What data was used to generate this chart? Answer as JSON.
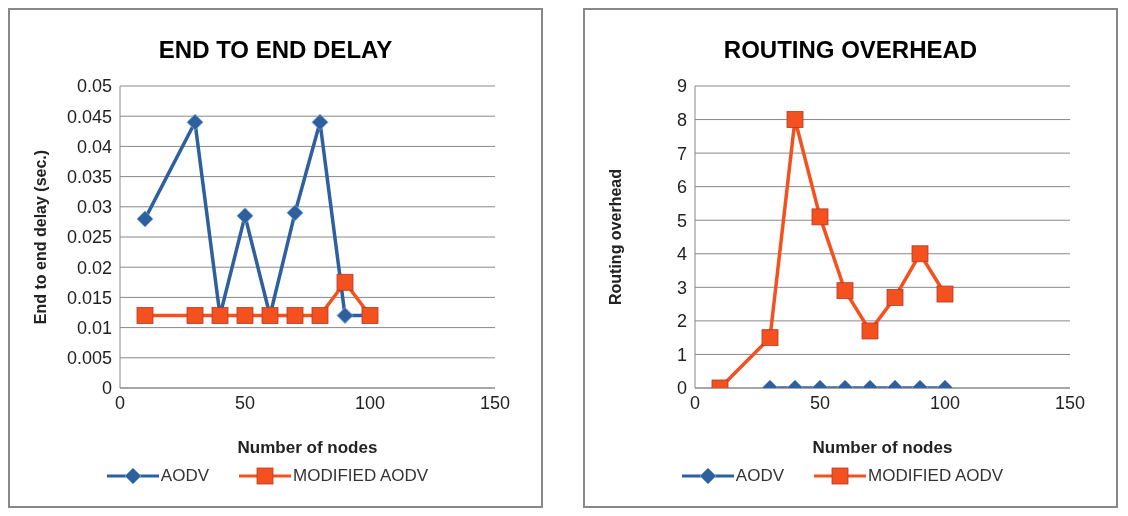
{
  "chart_data": [
    {
      "type": "line",
      "title": "END TO END DELAY",
      "xlabel": "Number of nodes",
      "ylabel": "End to end delay (sec.)",
      "xlim": [
        0,
        150
      ],
      "xticks": [
        0,
        50,
        100,
        150
      ],
      "ylim": [
        0,
        0.05
      ],
      "yticks": [
        0,
        0.005,
        0.01,
        0.015,
        0.02,
        0.025,
        0.03,
        0.035,
        0.04,
        0.045,
        0.05
      ],
      "grid": "y",
      "legend": "bottom",
      "line_style": "solid",
      "series": [
        {
          "name": "AODV",
          "color": "#2e5f9e",
          "marker": "diamond",
          "x": [
            10,
            30,
            40,
            50,
            60,
            70,
            80,
            90,
            100
          ],
          "values": [
            0.028,
            0.044,
            0.012,
            0.0285,
            0.012,
            0.029,
            0.044,
            0.012,
            0.012
          ]
        },
        {
          "name": "MODIFIED AODV",
          "color": "#f4511e",
          "marker": "square",
          "x": [
            10,
            30,
            40,
            50,
            60,
            70,
            80,
            90,
            100
          ],
          "values": [
            0.012,
            0.012,
            0.012,
            0.012,
            0.012,
            0.012,
            0.012,
            0.0175,
            0.012
          ]
        }
      ]
    },
    {
      "type": "line",
      "title": "ROUTING OVERHEAD",
      "xlabel": "Number of nodes",
      "ylabel": "Routing overhead",
      "xlim": [
        0,
        150
      ],
      "xticks": [
        0,
        50,
        100,
        150
      ],
      "ylim": [
        0,
        9
      ],
      "yticks": [
        0,
        1,
        2,
        3,
        4,
        5,
        6,
        7,
        8,
        9
      ],
      "grid": "y",
      "legend": "bottom",
      "line_style": "solid",
      "series": [
        {
          "name": "AODV",
          "color": "#2e5f9e",
          "marker": "diamond",
          "x": [
            30,
            40,
            50,
            60,
            70,
            80,
            90,
            100
          ],
          "values": [
            0,
            0,
            0,
            0,
            0,
            0,
            0,
            0
          ]
        },
        {
          "name": "MODIFIED AODV",
          "color": "#f4511e",
          "marker": "square",
          "x": [
            10,
            30,
            40,
            50,
            60,
            70,
            80,
            90,
            100
          ],
          "values": [
            0,
            1.5,
            8,
            5.1,
            2.9,
            1.7,
            2.7,
            4,
            2.8
          ]
        }
      ]
    }
  ]
}
